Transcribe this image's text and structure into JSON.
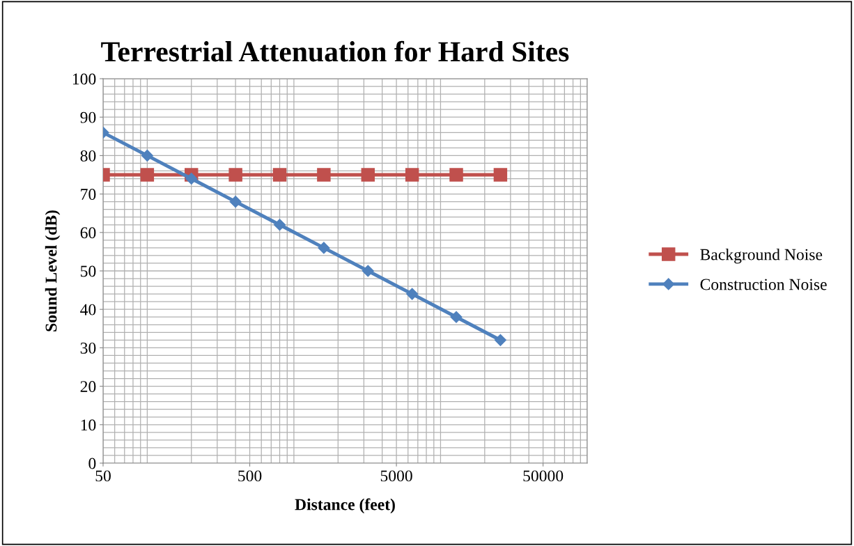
{
  "chart_data": {
    "type": "line",
    "title": "Terrestrial Attenuation for Hard Sites",
    "xlabel": "Distance (feet)",
    "ylabel": "Sound Level (dB)",
    "x": [
      50,
      100,
      200,
      400,
      800,
      1600,
      3200,
      6400,
      12800,
      25600
    ],
    "series": [
      {
        "name": "Background Noise",
        "color": "#c0504d",
        "marker": "square",
        "values": [
          75,
          75,
          75,
          75,
          75,
          75,
          75,
          75,
          75,
          75
        ]
      },
      {
        "name": "Construction Noise",
        "color": "#4f81bd",
        "marker": "diamond",
        "values": [
          86,
          80,
          74,
          68,
          62,
          56,
          50,
          44,
          38,
          32
        ]
      }
    ],
    "log": "x",
    "xlim": [
      50,
      100000
    ],
    "xticks": [
      50,
      500,
      5000,
      50000
    ],
    "ylim": [
      0,
      100
    ],
    "yticks": [
      0,
      10,
      20,
      30,
      40,
      50,
      60,
      70,
      80,
      90,
      100
    ],
    "grid": true,
    "legend": "right",
    "line_style": "solid"
  }
}
